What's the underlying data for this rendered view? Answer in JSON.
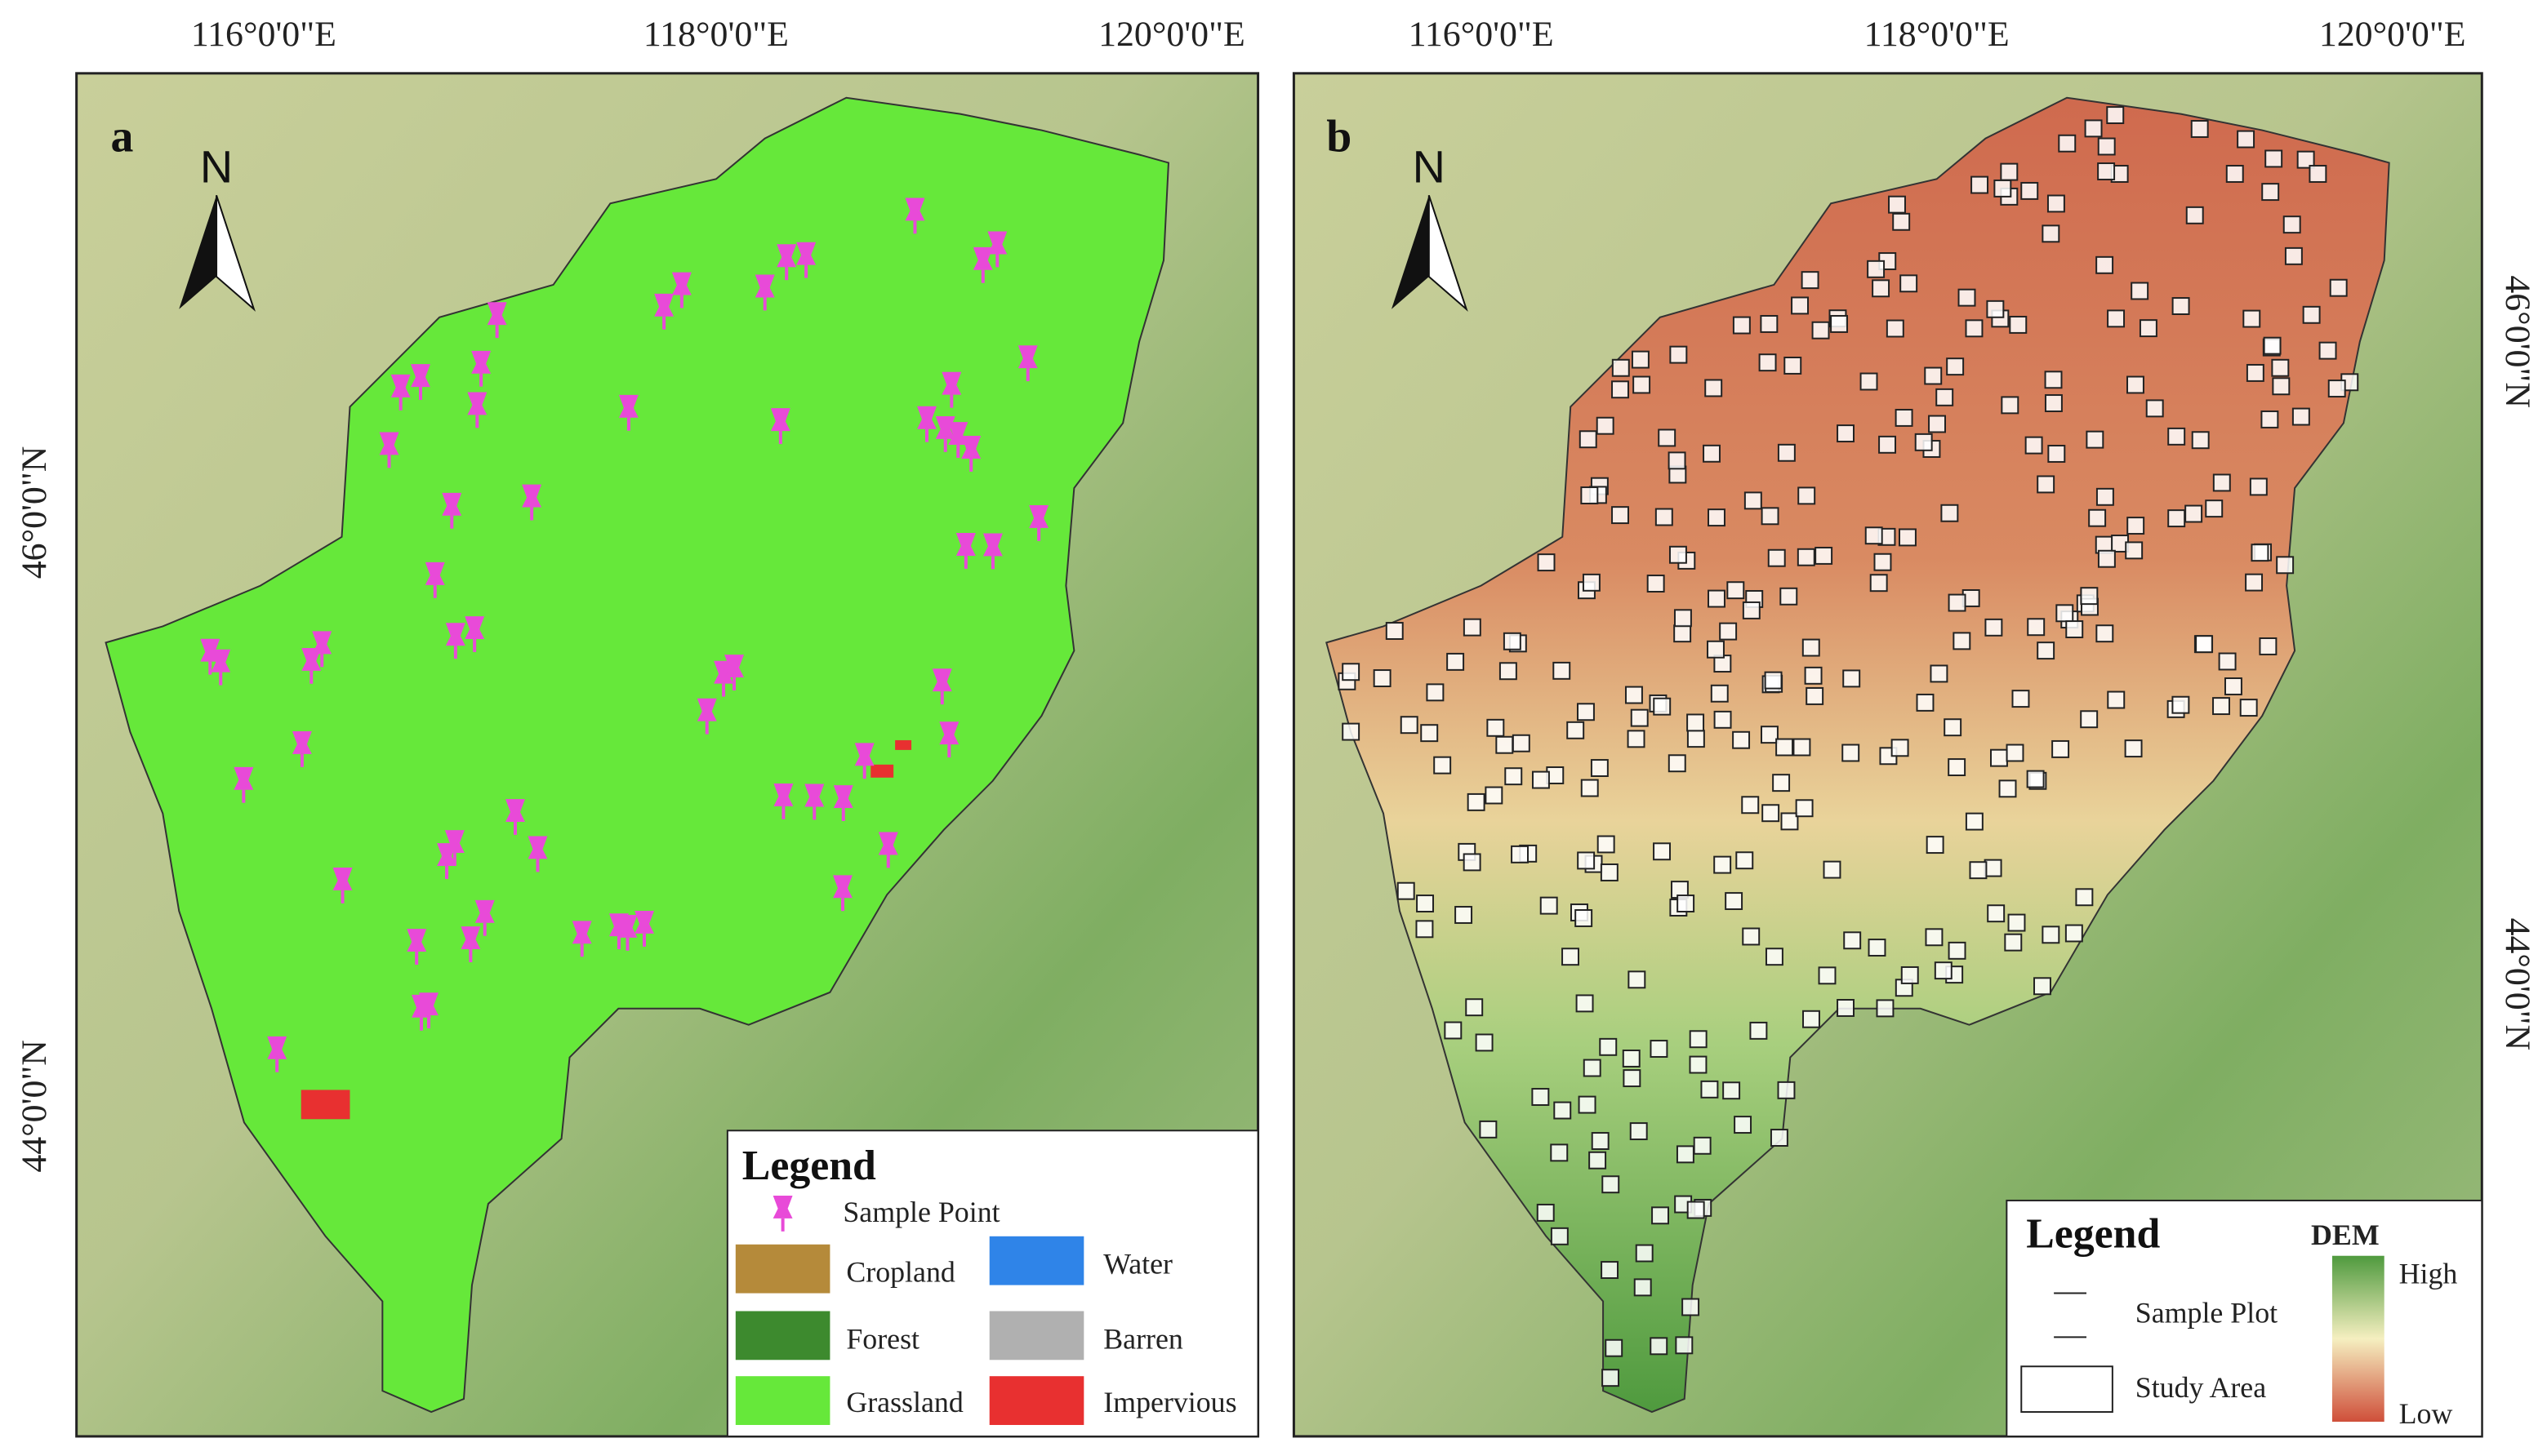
{
  "panels": [
    {
      "label": "a",
      "top_axis_labels": [
        "116°0'0\"E",
        "118°0'0\"E",
        "120°0'0\"E"
      ],
      "side_axis_labels": [
        "46°0'0\"N",
        "44°0'0\"N"
      ],
      "north": "N",
      "legend": {
        "title": "Legend",
        "items": [
          "Sample Point",
          "Cropland",
          "Water",
          "Forest",
          "Barren",
          "Grassland",
          "Impervious"
        ]
      }
    },
    {
      "label": "b",
      "top_axis_labels": [
        "116°0'0\"E",
        "118°0'0\"E",
        "120°0'0\"E"
      ],
      "side_axis_labels": [
        "46°0'0\"N",
        "44°0'0\"N"
      ],
      "north": "N",
      "legend": {
        "title": "Legend",
        "items": [
          "Sample Plot",
          "Study Area"
        ],
        "ramp_title": "DEM",
        "ramp_high": "High",
        "ramp_low": "Low"
      }
    }
  ]
}
